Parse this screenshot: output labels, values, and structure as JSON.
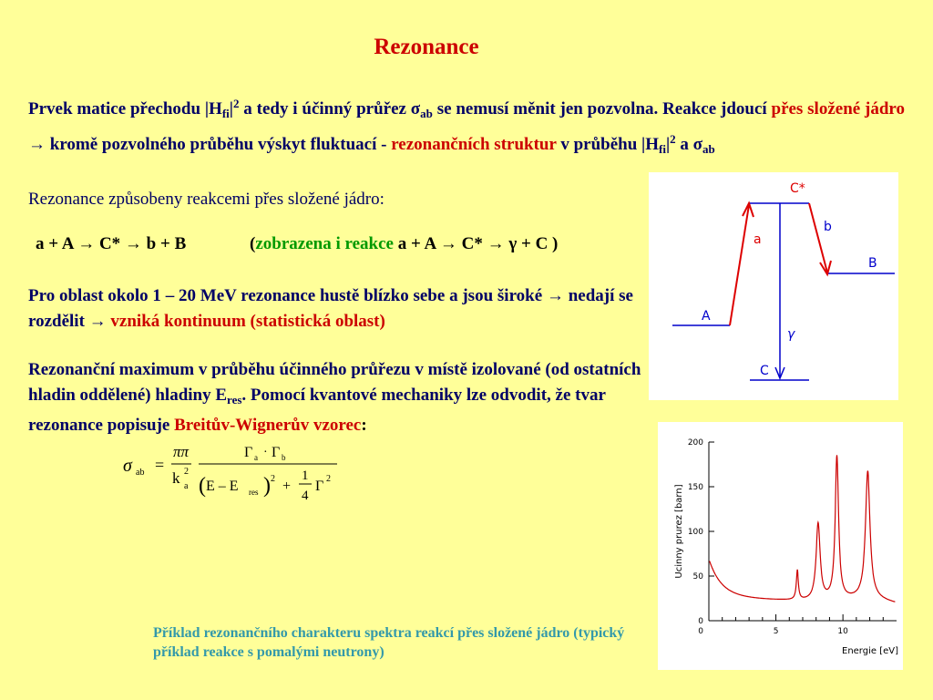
{
  "title": "Rezonance",
  "para1": {
    "t1": "Prvek matice přechodu |H",
    "t1_sub": "fi",
    "t1_sup": "2",
    "t2": " a tedy i účinný průřez σ",
    "t2_sub": "ab",
    "t3": " se nemusí měnit jen pozvolna. Reakce jdoucí ",
    "red1": "přes složené jádro",
    "t4": " → kromě pozvolného průběhu výskyt fluktuací - ",
    "red2": "rezonančních struktur",
    "t5": " v průběhu |H",
    "t5_sub": "fi",
    "t5_sup": "2",
    "t6": " a σ",
    "t6_sub": "ab"
  },
  "subhead": "Rezonance způsobeny reakcemi přes složené jádro:",
  "reaction": "a + A → C* → b + B",
  "reaction_note": {
    "open": "(",
    "green": "zobrazena i reakce",
    "rest": " a + A → C* → γ + C )"
  },
  "para3": {
    "t1": "Pro oblast okolo 1 – 20 MeV rezonance hustě blízko sebe a jsou široké → nedají se rozdělit → ",
    "red": "vzniká kontinuum (statistická oblast)"
  },
  "para4": {
    "t1": "Rezonanční maximum v průběhu účinného průřezu v místě izolované (od ostatních hladin oddělené) hladiny E",
    "t1_sub": "res",
    "t2": ". Pomocí kvantové mechaniky lze odvodit, že tvar rezonance popisuje ",
    "red": "Breitův-Wignerův vzorec",
    "t3": ":"
  },
  "formula": {
    "sigma": "σ",
    "sigma_sub": "ab",
    "eq": "=",
    "pi": "ππ",
    "k": "k",
    "k_sup": "2",
    "k_sub": "a",
    "gamma_a": "Γ",
    "gamma_a_sub": "a",
    "dot": "·",
    "gamma_b": "Γ",
    "gamma_b_sub": "b",
    "paren_open": "(",
    "e": "E – E",
    "e_sub": "res",
    "paren_close": ")",
    "paren_sup": "2",
    "plus": "+",
    "one": "1",
    "four": "4",
    "gamma": "Γ",
    "gamma_sup": "2"
  },
  "diagram": {
    "c_star": "C*",
    "a": "a",
    "b": "b",
    "A": "A",
    "B": "B",
    "gamma": "γ",
    "C": "C",
    "line_color": "#0000CC",
    "arrow_color": "#DD0000"
  },
  "chart_data": {
    "type": "line",
    "title": "",
    "xlabel": "Energie [eV]",
    "ylabel": "Ucinny prurez [barn]",
    "xlim": [
      0,
      14
    ],
    "ylim": [
      0,
      200
    ],
    "xticks": [
      "5",
      "10"
    ],
    "yticks": [
      "0",
      "50",
      "100",
      "150",
      "200"
    ],
    "series": [
      {
        "color": "#CC0000",
        "x": [
          0,
          0.5,
          1,
          2,
          3,
          4,
          5,
          6,
          6.4,
          6.6,
          6.8,
          7.5,
          7.8,
          8.0,
          8.2,
          8.5,
          9.0,
          9.3,
          9.5,
          9.7,
          10.0,
          11.0,
          11.5,
          11.8,
          12.0,
          12.3,
          13.0,
          14.0
        ],
        "y": [
          58,
          42,
          33,
          24,
          20,
          19,
          20,
          23,
          55,
          24,
          22,
          45,
          82,
          104,
          80,
          42,
          60,
          120,
          187,
          120,
          48,
          52,
          95,
          158,
          120,
          40,
          20,
          15
        ]
      }
    ]
  },
  "caption": "Příklad rezonančního charakteru spektra reakcí přes složené jádro (typický příklad reakce s pomalými neutrony)"
}
